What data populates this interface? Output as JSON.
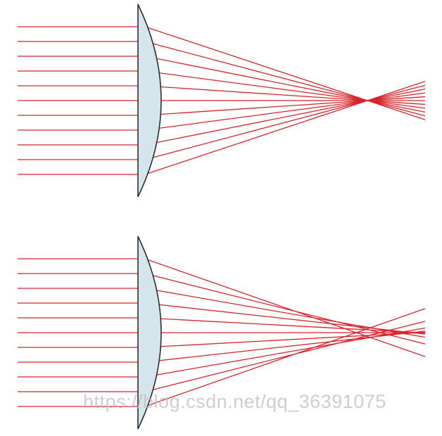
{
  "colors": {
    "ray": "#d8242a",
    "lens_fill": "#d4e6ec",
    "lens_stroke": "#2a2f33",
    "background": "#ffffff"
  },
  "panels": [
    {
      "name": "top-panel",
      "ray_count": 11,
      "focus_behavior": "single-focus"
    },
    {
      "name": "bottom-panel",
      "ray_count": 11,
      "focus_behavior": "spherical-aberration"
    }
  ],
  "watermark": {
    "text": "https://blog.csdn.net/qq_36391075"
  }
}
